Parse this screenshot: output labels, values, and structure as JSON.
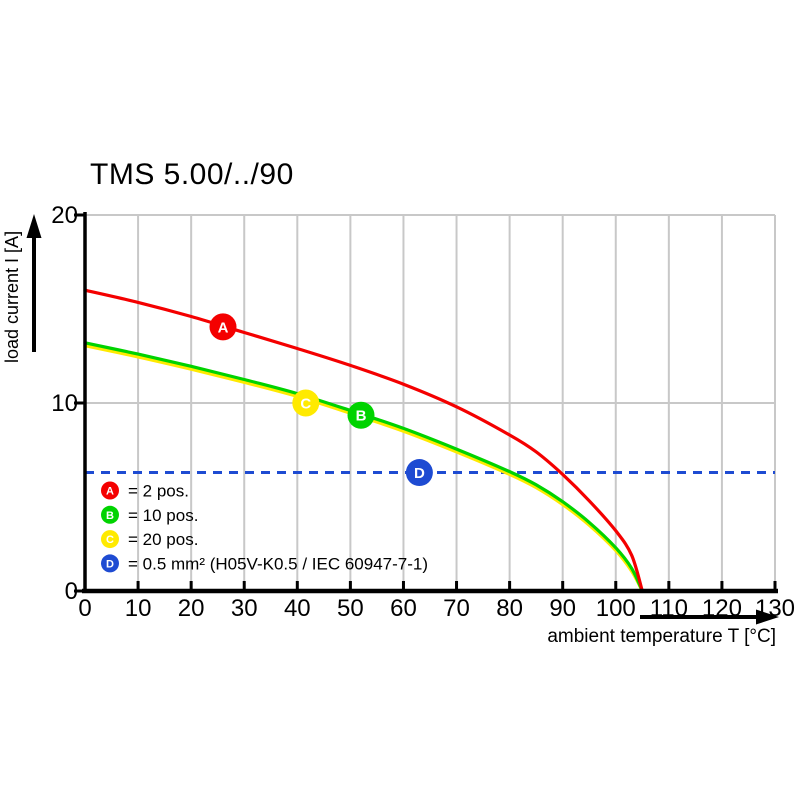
{
  "title": "TMS 5.00/../90",
  "chart_data": {
    "type": "line",
    "title": "TMS 5.00/../90",
    "xlabel": "ambient temperature T [°C]",
    "ylabel": "load current I [A]",
    "xlim": [
      0,
      130
    ],
    "ylim": [
      0,
      20
    ],
    "x_ticks": [
      0,
      10,
      20,
      30,
      40,
      50,
      60,
      70,
      80,
      90,
      100,
      110,
      120,
      130
    ],
    "y_ticks": [
      0,
      10,
      20
    ],
    "grid": true,
    "grid_color": "#c8c8c8",
    "axis_color": "#000000",
    "series": [
      {
        "name": "C = 20 pos.",
        "color": "#ffea00",
        "points": [
          [
            0,
            13.05
          ],
          [
            10,
            12.45
          ],
          [
            20,
            11.8
          ],
          [
            30,
            11.1
          ],
          [
            40,
            10.35
          ],
          [
            50,
            9.45
          ],
          [
            60,
            8.5
          ],
          [
            70,
            7.4
          ],
          [
            80,
            6.2
          ],
          [
            85,
            5.5
          ],
          [
            90,
            4.6
          ],
          [
            95,
            3.5
          ],
          [
            100,
            2.15
          ],
          [
            103,
            1.05
          ],
          [
            105,
            0
          ]
        ]
      },
      {
        "name": "B = 10 pos.",
        "color": "#00d300",
        "points": [
          [
            0,
            13.2
          ],
          [
            10,
            12.6
          ],
          [
            20,
            11.95
          ],
          [
            30,
            11.25
          ],
          [
            40,
            10.5
          ],
          [
            50,
            9.6
          ],
          [
            60,
            8.65
          ],
          [
            70,
            7.55
          ],
          [
            80,
            6.35
          ],
          [
            85,
            5.65
          ],
          [
            90,
            4.75
          ],
          [
            95,
            3.65
          ],
          [
            100,
            2.3
          ],
          [
            103,
            1.2
          ],
          [
            105,
            0
          ]
        ]
      },
      {
        "name": "A = 2 pos.",
        "color": "#f40000",
        "points": [
          [
            0,
            16
          ],
          [
            10,
            15.35
          ],
          [
            20,
            14.6
          ],
          [
            30,
            13.75
          ],
          [
            40,
            12.9
          ],
          [
            50,
            12
          ],
          [
            60,
            11
          ],
          [
            70,
            9.8
          ],
          [
            80,
            8.3
          ],
          [
            85,
            7.4
          ],
          [
            90,
            6.2
          ],
          [
            95,
            4.8
          ],
          [
            100,
            3.2
          ],
          [
            103,
            1.9
          ],
          [
            105,
            0
          ]
        ]
      }
    ],
    "limit_line": {
      "letter": "D",
      "value": 6.3,
      "color": "#1e4bd2",
      "style": "dashed",
      "x_range": [
        0,
        130
      ]
    },
    "markers": [
      {
        "letter": "A",
        "T": 26,
        "I": 14.05,
        "color": "#f40000"
      },
      {
        "letter": "C",
        "T": 41.6,
        "I": 10.0,
        "color": "#ffea00"
      },
      {
        "letter": "B",
        "T": 52,
        "I": 9.35,
        "color": "#00d300"
      },
      {
        "letter": "D",
        "T": 63,
        "I": 6.3,
        "color": "#1e4bd2"
      }
    ],
    "legend": [
      {
        "letter": "A",
        "color": "#f40000",
        "label": "= 2 pos."
      },
      {
        "letter": "B",
        "color": "#00d300",
        "label": "= 10 pos."
      },
      {
        "letter": "C",
        "color": "#ffea00",
        "label": "= 20 pos."
      },
      {
        "letter": "D",
        "color": "#1e4bd2",
        "label": "= 0.5 mm² (H05V-K0.5 / IEC 60947-7-1)"
      }
    ],
    "legend_position": "lower-left-inside"
  }
}
